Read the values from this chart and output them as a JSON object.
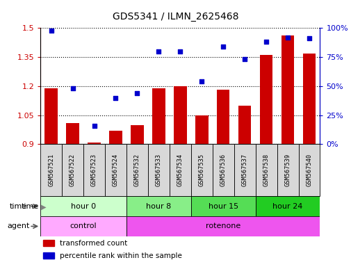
{
  "title": "GDS5341 / ILMN_2625468",
  "samples": [
    "GSM567521",
    "GSM567522",
    "GSM567523",
    "GSM567524",
    "GSM567532",
    "GSM567533",
    "GSM567534",
    "GSM567535",
    "GSM567536",
    "GSM567537",
    "GSM567538",
    "GSM567539",
    "GSM567540"
  ],
  "transformed_count": [
    1.19,
    1.01,
    0.91,
    0.97,
    1.0,
    1.19,
    1.2,
    1.05,
    1.18,
    1.1,
    1.36,
    1.46,
    1.37
  ],
  "percentile_rank": [
    98,
    48,
    16,
    40,
    44,
    80,
    80,
    54,
    84,
    73,
    88,
    92,
    91
  ],
  "ylim_left": [
    0.9,
    1.5
  ],
  "ylim_right": [
    0,
    100
  ],
  "yticks_left": [
    0.9,
    1.05,
    1.2,
    1.35,
    1.5
  ],
  "yticks_right": [
    0,
    25,
    50,
    75,
    100
  ],
  "ytick_labels_right": [
    "0%",
    "25%",
    "50%",
    "75%",
    "100%"
  ],
  "bar_color": "#cc0000",
  "dot_color": "#0000cc",
  "baseline": 0.9,
  "time_groups": [
    {
      "label": "hour 0",
      "start": 0,
      "end": 4,
      "color": "#ccffcc"
    },
    {
      "label": "hour 8",
      "start": 4,
      "end": 7,
      "color": "#88ee88"
    },
    {
      "label": "hour 15",
      "start": 7,
      "end": 10,
      "color": "#55dd55"
    },
    {
      "label": "hour 24",
      "start": 10,
      "end": 13,
      "color": "#22cc22"
    }
  ],
  "agent_groups": [
    {
      "label": "control",
      "start": 0,
      "end": 4,
      "color": "#ffaaff"
    },
    {
      "label": "rotenone",
      "start": 4,
      "end": 13,
      "color": "#ee55ee"
    }
  ],
  "legend_items": [
    {
      "color": "#cc0000",
      "label": "transformed count"
    },
    {
      "color": "#0000cc",
      "label": "percentile rank within the sample"
    }
  ]
}
